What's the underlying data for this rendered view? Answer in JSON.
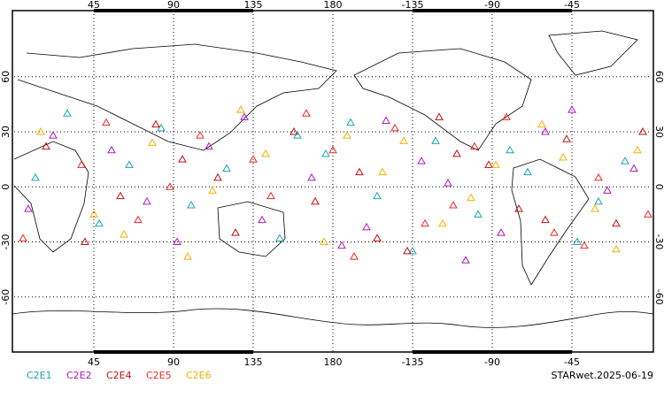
{
  "chart_data": {
    "type": "scatter",
    "xlim": [
      0,
      360
    ],
    "ylim": [
      -90,
      96
    ],
    "xticks": [
      45,
      90,
      135,
      180,
      {
        "value": 225,
        "label": "-135"
      },
      {
        "value": 270,
        "label": "-90"
      },
      {
        "value": 315,
        "label": "-45"
      }
    ],
    "yticks": [
      -60,
      -30,
      0,
      30,
      60
    ],
    "grid": true,
    "stamp": "STARwet.2025-06-19",
    "series": [
      {
        "name": "C2E1",
        "color": "#18a8b0",
        "x": [
          12,
          48,
          83,
          120,
          150,
          176,
          205,
          238,
          262,
          290,
          318,
          345,
          30,
          100,
          160,
          225,
          280,
          330,
          65,
          190
        ],
        "y": [
          5,
          -20,
          32,
          10,
          -28,
          18,
          -5,
          25,
          -15,
          8,
          -30,
          14,
          40,
          -10,
          28,
          -35,
          20,
          -8,
          12,
          35
        ]
      },
      {
        "name": "C2E2",
        "color": "#b018c0",
        "x": [
          8,
          55,
          92,
          130,
          168,
          199,
          230,
          255,
          300,
          335,
          22,
          75,
          140,
          210,
          275,
          350,
          110,
          185,
          245,
          315
        ],
        "y": [
          -12,
          20,
          -30,
          38,
          5,
          -22,
          14,
          -40,
          30,
          -2,
          28,
          -8,
          -18,
          36,
          -25,
          10,
          22,
          -32,
          2,
          42
        ]
      },
      {
        "name": "C2E4",
        "color": "#c01010",
        "x": [
          18,
          60,
          95,
          125,
          158,
          195,
          222,
          250,
          285,
          312,
          340,
          40,
          115,
          170,
          240,
          300,
          355,
          80,
          205,
          268
        ],
        "y": [
          22,
          -5,
          15,
          -25,
          30,
          8,
          -35,
          18,
          -12,
          26,
          -20,
          -30,
          5,
          -8,
          38,
          -18,
          30,
          34,
          -28,
          12
        ]
      },
      {
        "name": "C2E5",
        "color": "#f02828",
        "x": [
          5,
          38,
          70,
          105,
          145,
          180,
          215,
          248,
          278,
          305,
          330,
          358,
          52,
          135,
          192,
          260,
          322,
          88,
          232,
          165
        ],
        "y": [
          -28,
          12,
          -18,
          28,
          -5,
          20,
          32,
          -10,
          38,
          -25,
          5,
          -15,
          35,
          15,
          -38,
          22,
          -32,
          0,
          -20,
          40
        ]
      },
      {
        "name": "C2E6",
        "color": "#f8b000",
        "x": [
          15,
          45,
          78,
          112,
          142,
          175,
          208,
          242,
          272,
          298,
          328,
          352,
          62,
          128,
          188,
          258,
          310,
          98,
          220,
          340
        ],
        "y": [
          30,
          -15,
          24,
          -2,
          18,
          -30,
          8,
          -20,
          12,
          34,
          -12,
          20,
          -26,
          42,
          28,
          -6,
          16,
          -38,
          25,
          -34
        ]
      }
    ]
  }
}
